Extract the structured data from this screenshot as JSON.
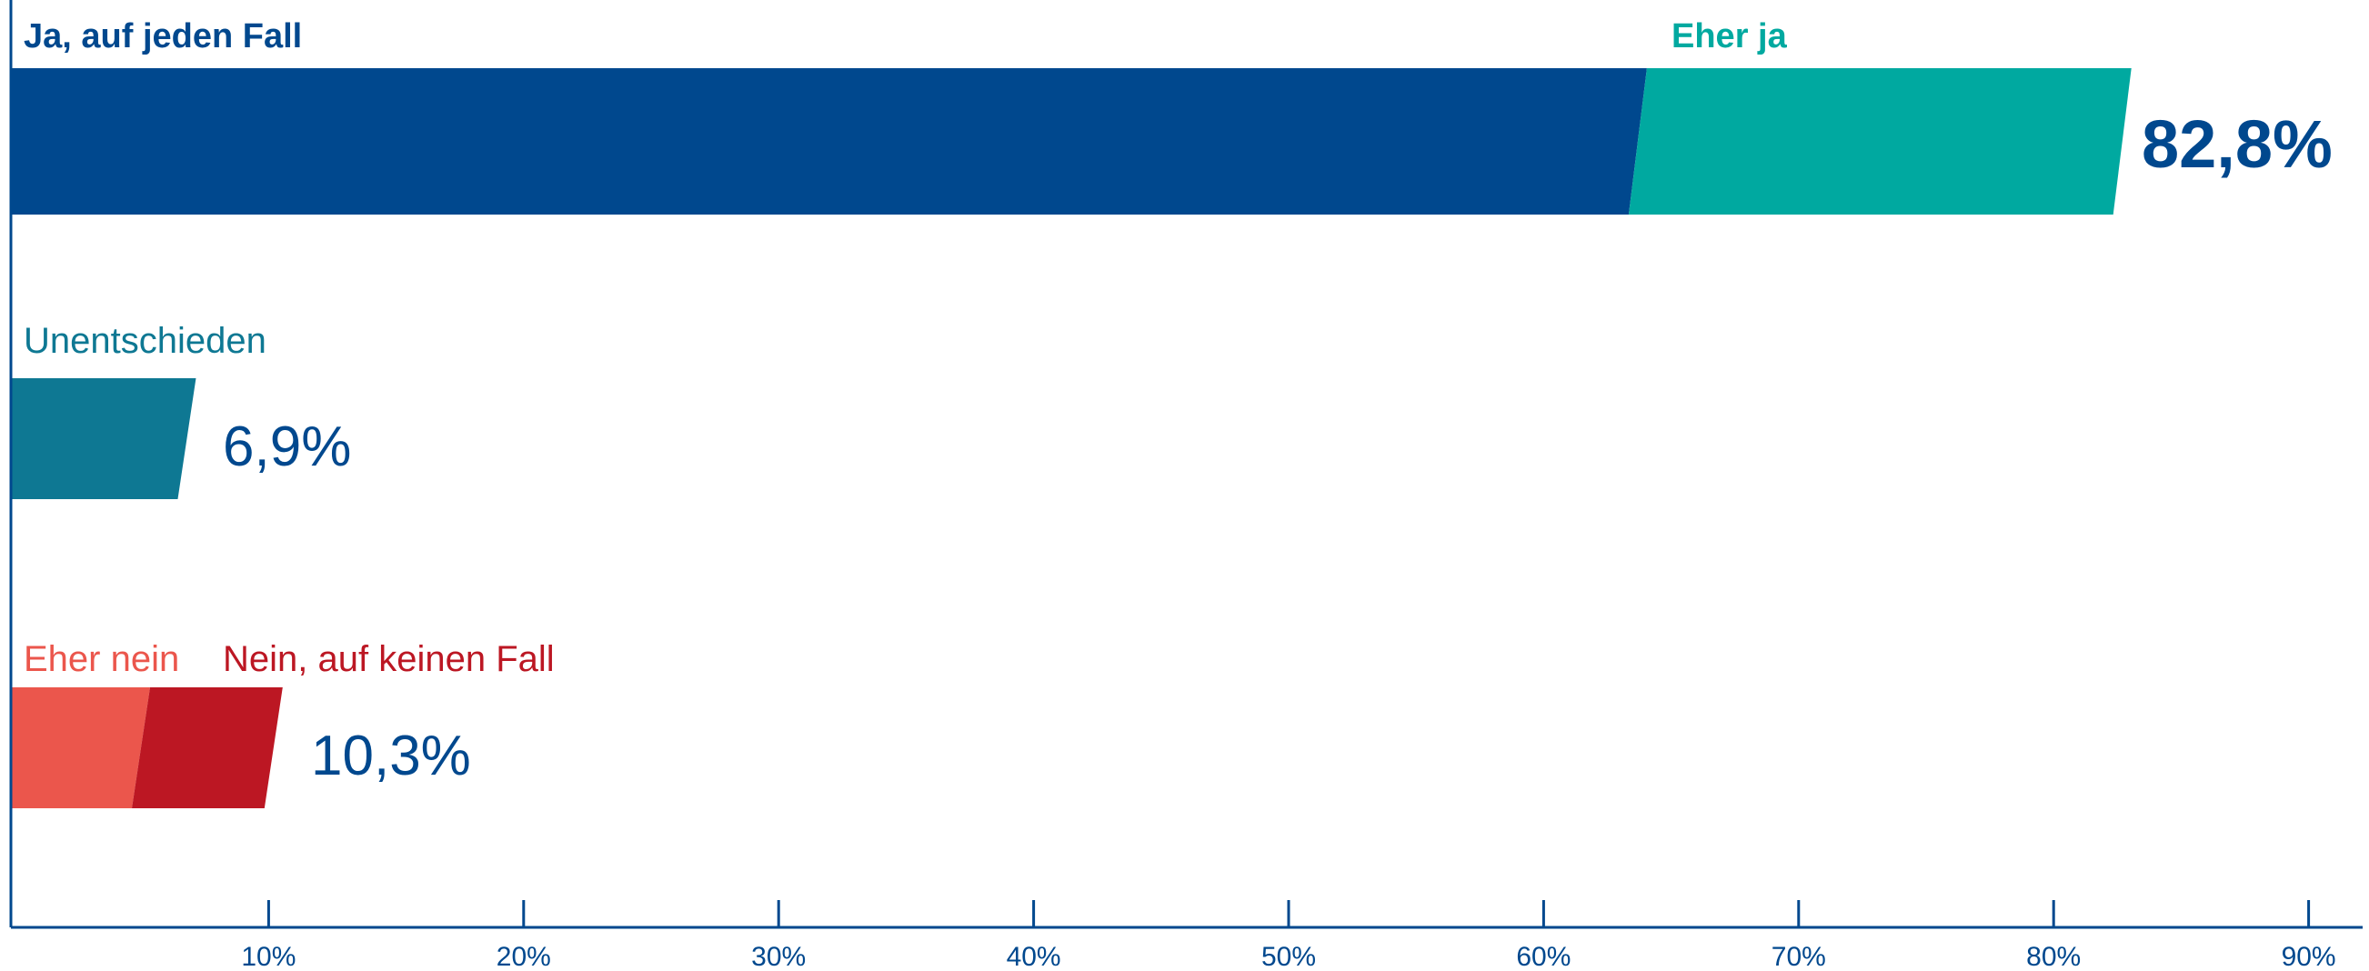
{
  "chart_data": {
    "type": "bar",
    "orientation": "horizontal",
    "stacked": true,
    "x_axis": {
      "min": 0,
      "max": 92,
      "ticks": [
        10,
        20,
        30,
        40,
        50,
        60,
        70,
        80,
        90
      ],
      "tick_labels": [
        "10%",
        "20%",
        "30%",
        "40%",
        "50%",
        "60%",
        "70%",
        "80%",
        "90%"
      ]
    },
    "grid": false,
    "rows": [
      {
        "total_label": "82,8%",
        "segments": [
          {
            "name": "Ja, auf jeden Fall",
            "value": 63.8,
            "color": "#00488e"
          },
          {
            "name": "Eher ja",
            "value": 19.0,
            "color": "#00a9a0"
          }
        ]
      },
      {
        "total_label": "6,9%",
        "segments": [
          {
            "name": "Unentschieden",
            "value": 6.9,
            "color": "#0e7893"
          }
        ]
      },
      {
        "total_label": "10,3%",
        "segments": [
          {
            "name": "Eher nein",
            "value": 5.1,
            "color": "#eb564c"
          },
          {
            "name": "Nein, auf keinen Fall",
            "value": 5.2,
            "color": "#bc1723"
          }
        ]
      }
    ],
    "colors": {
      "axis": "#00488e",
      "tick_text": "#00488e",
      "total_text": "#00488e",
      "label_ja": "#00488e",
      "label_eher_ja": "#00a9a0",
      "label_unentschieden": "#0e7893",
      "label_eher_nein": "#eb564c",
      "label_nein": "#bc1723"
    }
  }
}
